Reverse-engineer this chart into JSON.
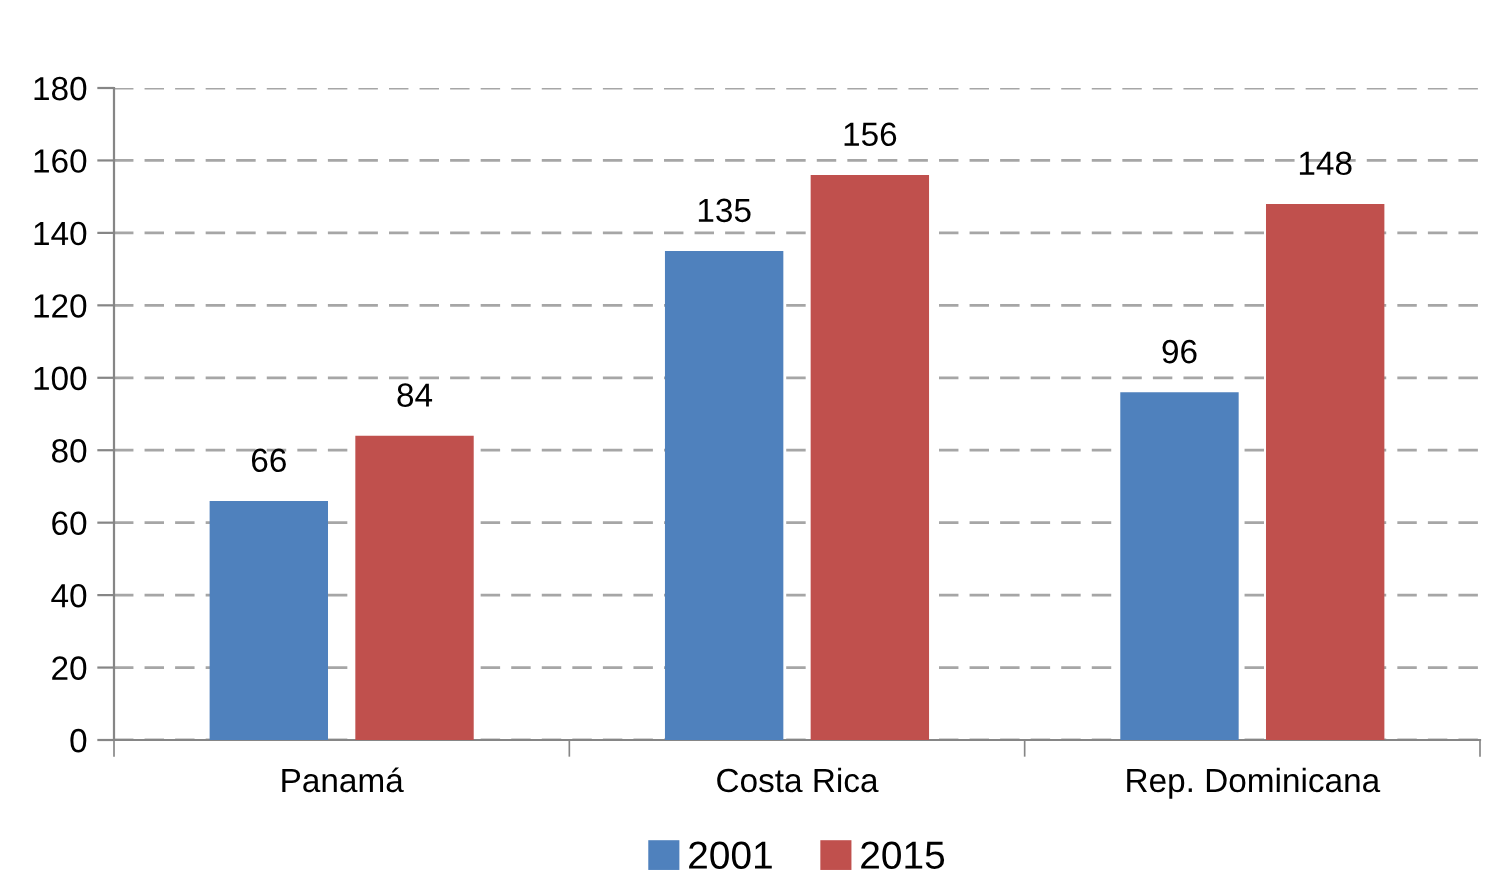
{
  "chart_data": {
    "type": "bar",
    "categories": [
      "Panamá",
      "Costa Rica",
      "Rep. Dominicana"
    ],
    "series": [
      {
        "name": "2001",
        "color": "#4f81bd",
        "values": [
          66,
          135,
          96
        ]
      },
      {
        "name": "2015",
        "color": "#c0504d",
        "values": [
          84,
          156,
          148
        ]
      }
    ],
    "ylim": [
      0,
      180
    ],
    "yticks": [
      0,
      20,
      40,
      60,
      80,
      100,
      120,
      140,
      160,
      180
    ],
    "grid": "y",
    "legend": "bottom",
    "data_labels": true
  }
}
